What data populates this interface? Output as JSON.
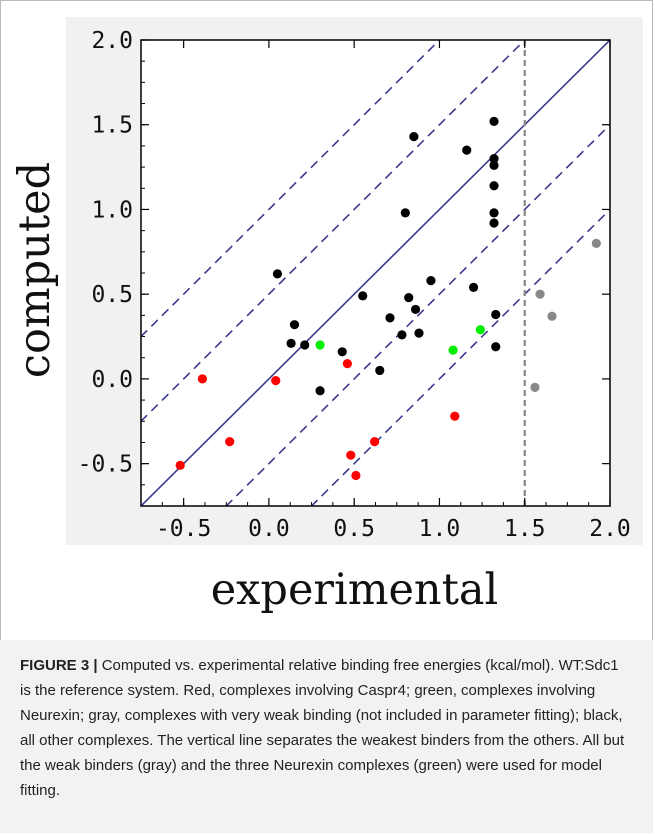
{
  "chart_data": {
    "type": "scatter",
    "title": "",
    "xlabel": "experimental",
    "ylabel": "computed",
    "xlim": [
      -0.75,
      2.0
    ],
    "ylim": [
      -0.75,
      2.0
    ],
    "x_ticks": [
      "-0.5",
      "0.0",
      "0.5",
      "1.0",
      "1.5",
      "2.0"
    ],
    "y_ticks": [
      "-0.5",
      "0.0",
      "0.5",
      "1.0",
      "1.5",
      "2.0"
    ],
    "x_tick_values": [
      -0.5,
      0.0,
      0.5,
      1.0,
      1.5,
      2.0
    ],
    "y_tick_values": [
      -0.5,
      0.0,
      0.5,
      1.0,
      1.5,
      2.0
    ],
    "grid": false,
    "reference_lines": [
      {
        "kind": "diagonal",
        "offset": 0.0,
        "style": "solid",
        "color": "#3c3a8c"
      },
      {
        "kind": "diagonal",
        "offset": 0.5,
        "style": "dashed",
        "color": "#3c3a8c"
      },
      {
        "kind": "diagonal",
        "offset": -0.5,
        "style": "dashed",
        "color": "#3c3a8c"
      },
      {
        "kind": "diagonal",
        "offset": 1.0,
        "style": "dashed",
        "color": "#3c3a8c"
      },
      {
        "kind": "diagonal",
        "offset": -1.0,
        "style": "dashed",
        "color": "#3c3a8c"
      },
      {
        "kind": "vertical",
        "x": 1.5,
        "style": "dashed",
        "color": "#888888"
      }
    ],
    "series": [
      {
        "color": "#000000",
        "points": [
          [
            0.05,
            0.62
          ],
          [
            0.13,
            0.21
          ],
          [
            0.15,
            0.32
          ],
          [
            0.21,
            0.2
          ],
          [
            0.3,
            -0.07
          ],
          [
            0.43,
            0.16
          ],
          [
            0.55,
            0.49
          ],
          [
            0.65,
            0.05
          ],
          [
            0.71,
            0.36
          ],
          [
            0.78,
            0.26
          ],
          [
            0.8,
            0.98
          ],
          [
            0.82,
            0.48
          ],
          [
            0.85,
            1.43
          ],
          [
            0.86,
            0.41
          ],
          [
            0.88,
            0.27
          ],
          [
            0.95,
            0.58
          ],
          [
            1.16,
            1.35
          ],
          [
            1.2,
            0.54
          ],
          [
            1.32,
            1.52
          ],
          [
            1.32,
            1.3
          ],
          [
            1.32,
            1.26
          ],
          [
            1.32,
            1.14
          ],
          [
            1.32,
            0.98
          ],
          [
            1.32,
            0.92
          ],
          [
            1.33,
            0.38
          ],
          [
            1.33,
            0.19
          ]
        ]
      },
      {
        "color": "#ff0000",
        "points": [
          [
            -0.52,
            -0.51
          ],
          [
            -0.39,
            0.0
          ],
          [
            -0.23,
            -0.37
          ],
          [
            0.04,
            -0.01
          ],
          [
            0.46,
            0.09
          ],
          [
            0.48,
            -0.45
          ],
          [
            0.51,
            -0.57
          ],
          [
            0.62,
            -0.37
          ],
          [
            1.09,
            -0.22
          ]
        ]
      },
      {
        "color": "#00ee00",
        "points": [
          [
            0.3,
            0.2
          ],
          [
            1.08,
            0.17
          ],
          [
            1.24,
            0.29
          ]
        ]
      },
      {
        "color": "#888888",
        "points": [
          [
            1.56,
            -0.05
          ],
          [
            1.59,
            0.5
          ],
          [
            1.66,
            0.37
          ],
          [
            1.92,
            0.8
          ]
        ]
      }
    ]
  },
  "caption": {
    "label": "FIGURE 3 |",
    "text": " Computed vs. experimental relative binding free energies (kcal/mol). WT:Sdc1 is the reference system. Red, complexes involving Caspr4; green, complexes involving Neurexin; gray, complexes with very weak binding (not included in parameter fitting); black, all other complexes. The vertical line separates the weakest binders from the others. All but the weak binders (gray) and the three Neurexin complexes (green) were used for model fitting."
  }
}
